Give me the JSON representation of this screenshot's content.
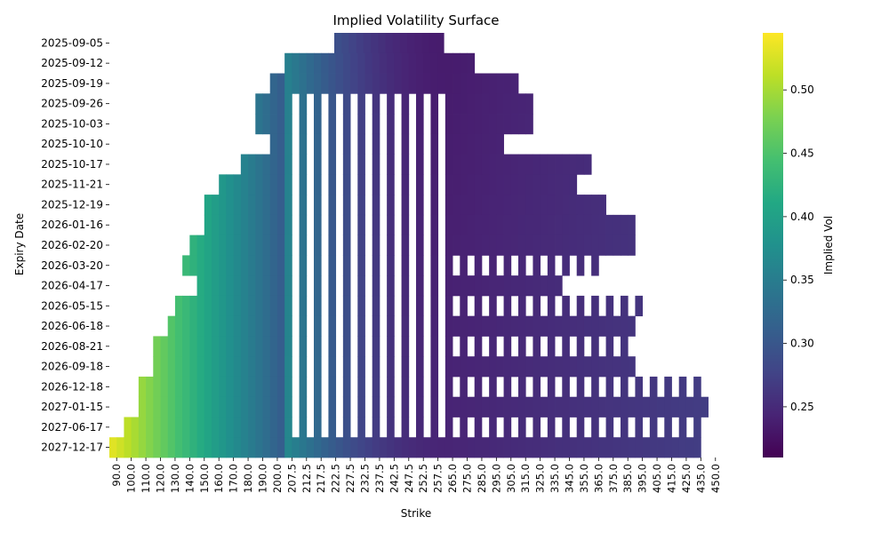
{
  "chart_data": {
    "type": "heatmap",
    "title": "Implied Volatility Surface",
    "xlabel": "Strike",
    "ylabel": "Expiry Date",
    "colorbar_label": "Implied Vol",
    "colormap": "viridis",
    "color_range": [
      0.21,
      0.545
    ],
    "colorbar_ticks": [
      "0.25",
      "0.30",
      "0.35",
      "0.40",
      "0.45",
      "0.50"
    ],
    "colorbar_tick_values": [
      0.25,
      0.3,
      0.35,
      0.4,
      0.45,
      0.5
    ],
    "expiries": [
      "2025-09-05",
      "2025-09-12",
      "2025-09-19",
      "2025-09-26",
      "2025-10-03",
      "2025-10-10",
      "2025-10-17",
      "2025-11-21",
      "2025-12-19",
      "2026-01-16",
      "2026-02-20",
      "2026-03-20",
      "2026-04-17",
      "2026-05-15",
      "2026-06-18",
      "2026-08-21",
      "2026-09-18",
      "2026-12-18",
      "2027-01-15",
      "2027-06-17",
      "2027-12-17"
    ],
    "strike_tick_labels": [
      "90.0",
      "100.0",
      "110.0",
      "120.0",
      "130.0",
      "140.0",
      "150.0",
      "160.0",
      "170.0",
      "180.0",
      "190.0",
      "200.0",
      "207.5",
      "212.5",
      "217.5",
      "222.5",
      "227.5",
      "232.5",
      "237.5",
      "242.5",
      "247.5",
      "252.5",
      "257.5",
      "265.0",
      "275.0",
      "285.0",
      "295.0",
      "305.0",
      "315.0",
      "325.0",
      "335.0",
      "345.0",
      "355.0",
      "365.0",
      "375.0",
      "385.0",
      "395.0",
      "405.0",
      "415.0",
      "425.0",
      "435.0",
      "450.0"
    ],
    "strike_step": 0.5,
    "vol_model": {
      "atm": 257.5,
      "wing_low": 0.52,
      "wing_high": 0.27,
      "base": 0.235
    }
  }
}
